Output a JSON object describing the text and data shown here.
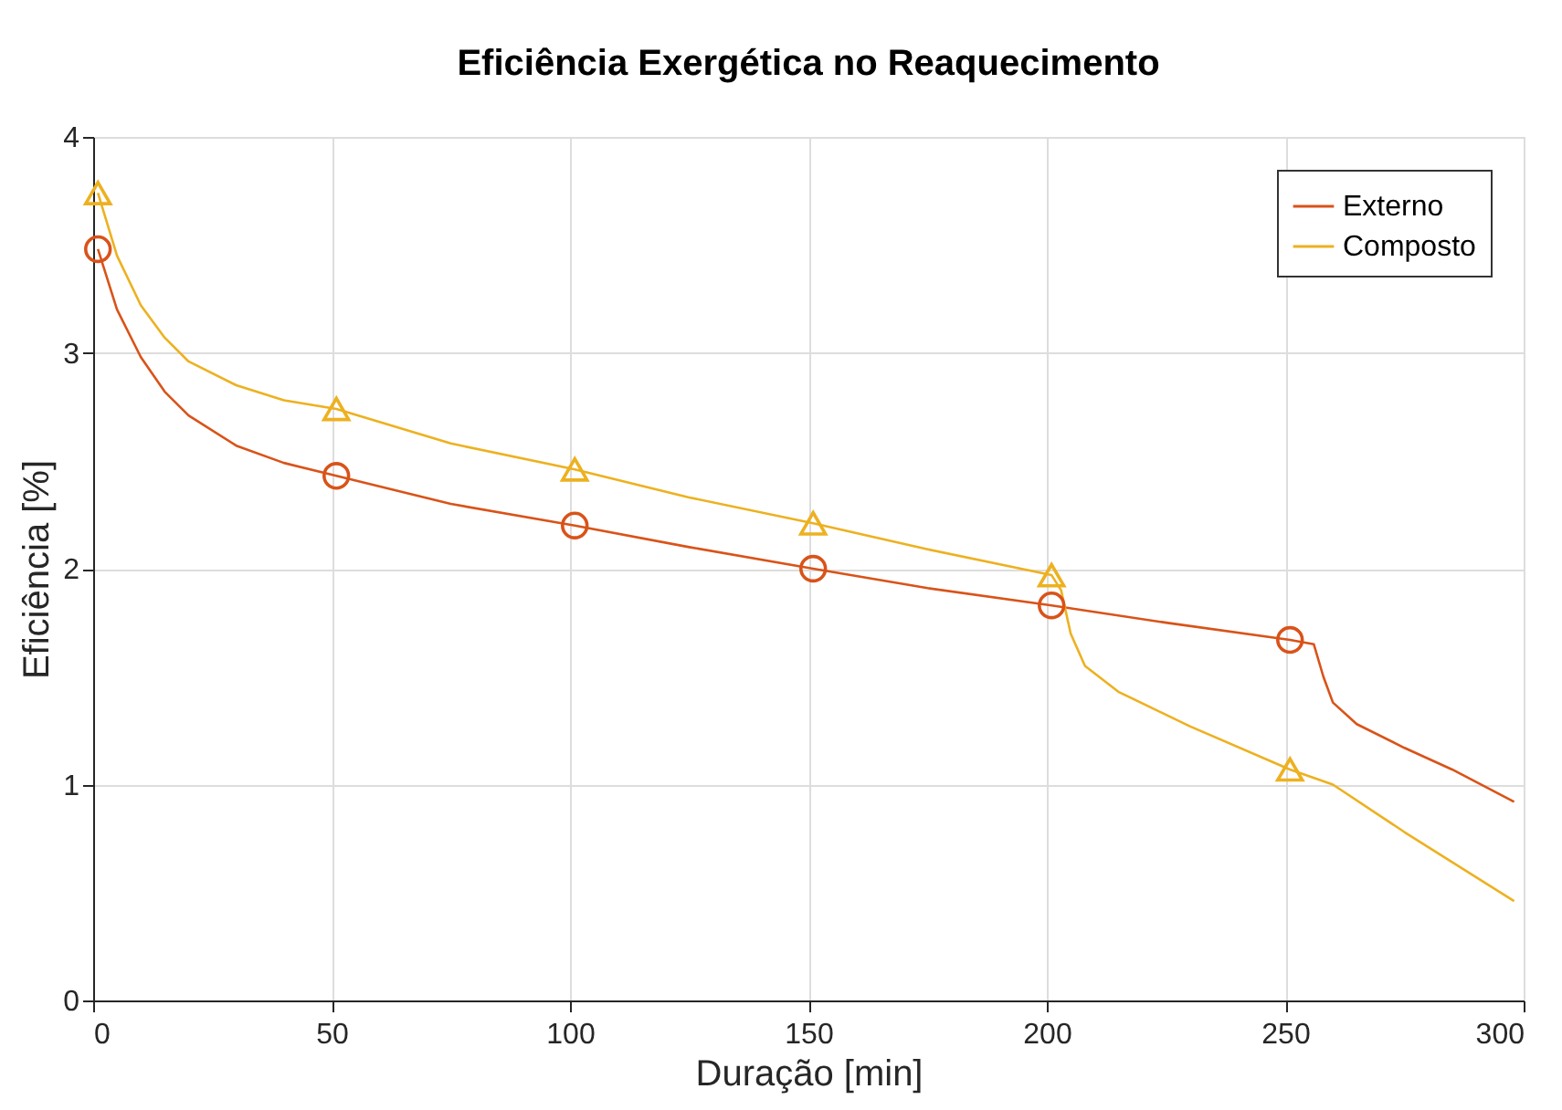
{
  "chart_data": {
    "type": "line",
    "title": "Eficiência Exergética no Reaquecimento",
    "xlabel": "Duração [min]",
    "ylabel": "Eficiência [%]",
    "xlim": [
      0,
      300
    ],
    "xticks": [
      0,
      50,
      100,
      150,
      200,
      250,
      300
    ],
    "ylim": [
      0,
      4
    ],
    "yticks": [
      0,
      1,
      2,
      3,
      4
    ],
    "grid": true,
    "legend": "top right",
    "series": [
      {
        "name": "Externo",
        "color": "#d95319",
        "x": [
          1,
          5,
          10,
          15,
          20,
          30,
          40,
          51,
          75,
          101,
          125,
          151,
          175,
          201,
          225,
          251,
          256,
          258,
          260,
          265,
          275,
          285,
          298
        ],
        "values": [
          3.48,
          3.2,
          2.98,
          2.82,
          2.71,
          2.57,
          2.49,
          2.43,
          2.3,
          2.2,
          2.1,
          2.0,
          1.91,
          1.83,
          1.75,
          1.67,
          1.65,
          1.5,
          1.38,
          1.28,
          1.17,
          1.07,
          0.92
        ]
      },
      {
        "name": "Composto",
        "color": "#edb120",
        "x": [
          1,
          5,
          10,
          15,
          20,
          30,
          40,
          51,
          75,
          101,
          125,
          151,
          175,
          201,
          203,
          205,
          208,
          215,
          230,
          251,
          260,
          275,
          298
        ],
        "values": [
          3.74,
          3.45,
          3.22,
          3.07,
          2.96,
          2.85,
          2.78,
          2.74,
          2.58,
          2.46,
          2.33,
          2.21,
          2.09,
          1.97,
          1.9,
          1.7,
          1.55,
          1.43,
          1.27,
          1.07,
          1.0,
          0.78,
          0.46
        ]
      },
      {
        "type": "scatter",
        "marker": "circle",
        "color": "#d95319",
        "x": [
          1,
          51,
          101,
          151,
          201,
          251
        ],
        "values": [
          3.48,
          2.43,
          2.2,
          2.0,
          1.83,
          1.67
        ]
      },
      {
        "type": "scatter",
        "marker": "triangle",
        "color": "#edb120",
        "x": [
          1,
          51,
          101,
          151,
          201,
          251
        ],
        "values": [
          3.74,
          2.74,
          2.46,
          2.21,
          1.97,
          1.07
        ]
      }
    ]
  }
}
